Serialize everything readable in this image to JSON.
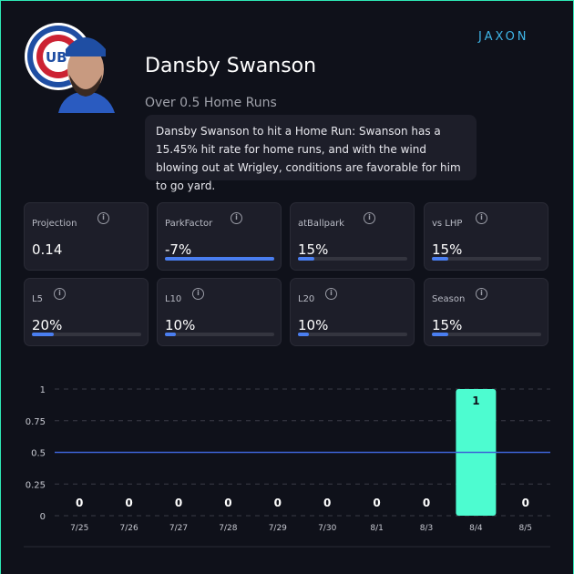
{
  "header": {
    "name": "Dansby Swanson",
    "prop": "Over 0.5 Home Runs",
    "description": "Dansby Swanson to hit a Home Run: Swanson has a 15.45% hit rate for home runs, and with the wind blowing out at Wrigley, conditions are favorable for him to go yard.",
    "brand": "JAXON",
    "team_logo": "UB"
  },
  "colors": {
    "border": "#2ee8b6",
    "bar": "#4dfcd0",
    "accent": "#4a7ef0",
    "line": "#3d63d6"
  },
  "stats": [
    {
      "label": "Projection",
      "value": "0.14",
      "bar": null
    },
    {
      "label": "ParkFactor",
      "value": "-7%",
      "bar": 100
    },
    {
      "label": "atBallpark",
      "value": "15%",
      "bar": 15
    },
    {
      "label": "vs LHP",
      "value": "15%",
      "bar": 15
    },
    {
      "label": "L5",
      "value": "20%",
      "bar": 20
    },
    {
      "label": "L10",
      "value": "10%",
      "bar": 10
    },
    {
      "label": "L20",
      "value": "10%",
      "bar": 10
    },
    {
      "label": "Season",
      "value": "15%",
      "bar": 15
    }
  ],
  "chart_data": {
    "type": "bar",
    "categories": [
      "7/25",
      "7/26",
      "7/27",
      "7/28",
      "7/29",
      "7/30",
      "8/1",
      "8/3",
      "8/4",
      "8/5"
    ],
    "values": [
      0,
      0,
      0,
      0,
      0,
      0,
      0,
      0,
      1,
      0
    ],
    "ylim": [
      0,
      1
    ],
    "yticks": [
      "0",
      "0.25",
      "0.5",
      "0.75",
      "1"
    ],
    "threshold": 0.5,
    "grid": true
  }
}
